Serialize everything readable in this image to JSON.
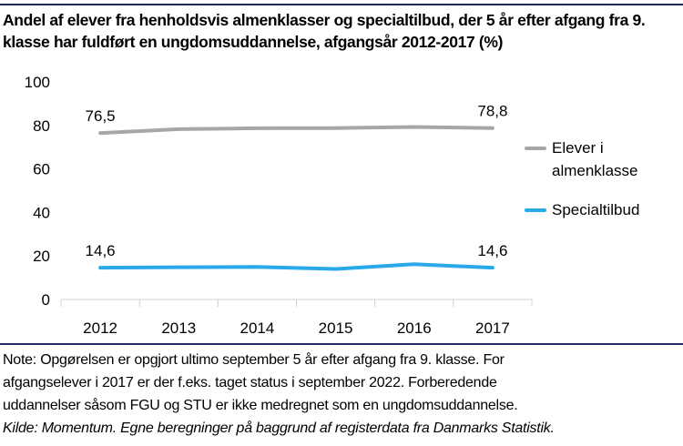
{
  "title": "Andel af elever fra henholdsvis almenklasser og specialtilbud, der 5 år efter afgang fra 9. klasse har fuldført en ungdomsuddannelse, afgangsår 2012-2017 (%)",
  "note": {
    "lines": [
      "Note: Opgørelsen er opgjort ultimo september 5 år efter afgang fra 9. klasse. For",
      "afgangselever i 2017 er der f.eks. taget status i september 2022. Forberedende",
      "uddannelser såsom FGU og STU er ikke medregnet som en ungdomsuddannelse."
    ],
    "source": "Kilde: Momentum. Egne beregninger på baggrund af registerdata fra Danmarks Statistik."
  },
  "colors": {
    "rule": "#1f2a5a",
    "axis": "#d0d0d0"
  },
  "chart_data": {
    "type": "line",
    "title": "Andel af elever fra henholdsvis almenklasser og specialtilbud, der 5 år efter afgang fra 9. klasse har fuldført en ungdomsuddannelse, afgangsår 2012-2017 (%)",
    "xlabel": "",
    "ylabel": "",
    "categories": [
      "2012",
      "2013",
      "2014",
      "2015",
      "2016",
      "2017"
    ],
    "ylim": [
      0,
      100
    ],
    "yticks": [
      0,
      20,
      40,
      60,
      80,
      100
    ],
    "ytick_labels": [
      "0",
      "20",
      "40",
      "60",
      "80",
      "100"
    ],
    "grid": false,
    "legend_position": "right",
    "series": [
      {
        "name": "Elever i almenklasse",
        "legend_lines": [
          "Elever i",
          "almenklasse"
        ],
        "color": "#a6a6a6",
        "values": [
          76.5,
          78.3,
          78.7,
          78.8,
          79.3,
          78.8
        ],
        "data_labels": [
          {
            "index": 0,
            "text": "76,5"
          },
          {
            "index": 5,
            "text": "78,8"
          }
        ]
      },
      {
        "name": "Specialtilbud",
        "legend_lines": [
          "Specialtilbud"
        ],
        "color": "#29a9ea",
        "values": [
          14.6,
          14.8,
          15.0,
          14.0,
          16.2,
          14.6
        ],
        "data_labels": [
          {
            "index": 0,
            "text": "14,6"
          },
          {
            "index": 5,
            "text": "14,6"
          }
        ]
      }
    ]
  }
}
